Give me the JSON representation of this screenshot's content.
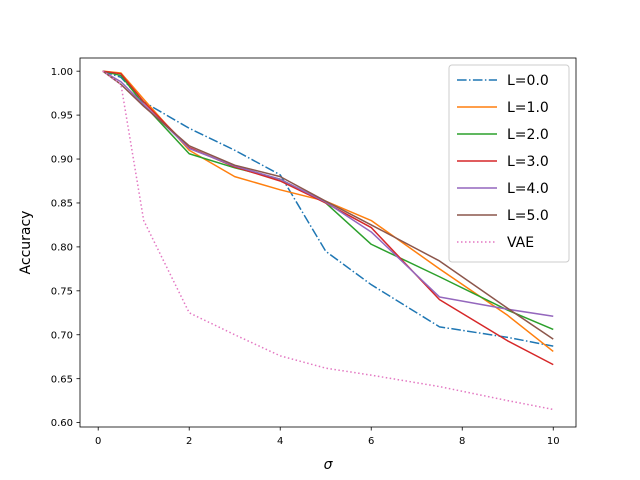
{
  "chart_data": {
    "type": "line",
    "title": "",
    "xlabel": "σ",
    "ylabel": "Accuracy",
    "xlim": [
      -0.4,
      10.5
    ],
    "ylim": [
      0.595,
      1.015
    ],
    "xticks": [
      0,
      2,
      4,
      6,
      8,
      10
    ],
    "yticks": [
      0.6,
      0.65,
      0.7,
      0.75,
      0.8,
      0.85,
      0.9,
      0.95,
      1.0
    ],
    "xtick_labels": [
      "0",
      "2",
      "4",
      "6",
      "8",
      "10"
    ],
    "ytick_labels": [
      "0.60",
      "0.65",
      "0.70",
      "0.75",
      "0.80",
      "0.85",
      "0.90",
      "0.95",
      "1.00"
    ],
    "grid": false,
    "legend_position": "top-right",
    "series": [
      {
        "name": "L=0.0",
        "color": "#1f77b4",
        "dash": "dashdot",
        "x": [
          0.1,
          0.5,
          1,
          2,
          3,
          4,
          5,
          6,
          7.5,
          9,
          10
        ],
        "y": [
          1.0,
          0.993,
          0.965,
          0.935,
          0.91,
          0.882,
          0.795,
          0.757,
          0.709,
          0.697,
          0.687
        ]
      },
      {
        "name": "L=1.0",
        "color": "#ff7f0e",
        "dash": "solid",
        "x": [
          0.1,
          0.5,
          1,
          2,
          3,
          4,
          5,
          6,
          7.5,
          9,
          10
        ],
        "y": [
          1.0,
          0.998,
          0.968,
          0.91,
          0.88,
          0.865,
          0.852,
          0.83,
          0.775,
          0.722,
          0.681
        ]
      },
      {
        "name": "L=2.0",
        "color": "#2ca02c",
        "dash": "solid",
        "x": [
          0.1,
          0.5,
          1,
          2,
          3,
          4,
          5,
          6,
          7.5,
          9,
          10
        ],
        "y": [
          1.0,
          0.995,
          0.962,
          0.906,
          0.89,
          0.877,
          0.85,
          0.803,
          0.766,
          0.728,
          0.706
        ]
      },
      {
        "name": "L=3.0",
        "color": "#d62728",
        "dash": "solid",
        "x": [
          0.1,
          0.5,
          1,
          2,
          3,
          4,
          5,
          6,
          7.5,
          9,
          10
        ],
        "y": [
          1.0,
          0.997,
          0.965,
          0.913,
          0.891,
          0.875,
          0.85,
          0.822,
          0.74,
          0.693,
          0.666
        ]
      },
      {
        "name": "L=4.0",
        "color": "#9467bd",
        "dash": "solid",
        "x": [
          0.1,
          0.5,
          1,
          2,
          3,
          4,
          5,
          6,
          7.5,
          9,
          10
        ],
        "y": [
          1.0,
          0.988,
          0.962,
          0.912,
          0.892,
          0.877,
          0.851,
          0.817,
          0.743,
          0.729,
          0.721
        ]
      },
      {
        "name": "L=5.0",
        "color": "#8c564b",
        "dash": "solid",
        "x": [
          0.1,
          0.5,
          1,
          2,
          3,
          4,
          5,
          6,
          7.5,
          9,
          10
        ],
        "y": [
          1.0,
          0.985,
          0.96,
          0.915,
          0.893,
          0.88,
          0.852,
          0.825,
          0.784,
          0.73,
          0.695
        ]
      },
      {
        "name": "VAE",
        "color": "#e377c2",
        "dash": "dotted",
        "x": [
          0.1,
          0.5,
          1,
          2,
          3,
          4,
          5,
          6,
          7.5,
          9,
          10
        ],
        "y": [
          1.0,
          0.985,
          0.83,
          0.725,
          0.7,
          0.676,
          0.662,
          0.654,
          0.641,
          0.625,
          0.615
        ]
      }
    ]
  }
}
